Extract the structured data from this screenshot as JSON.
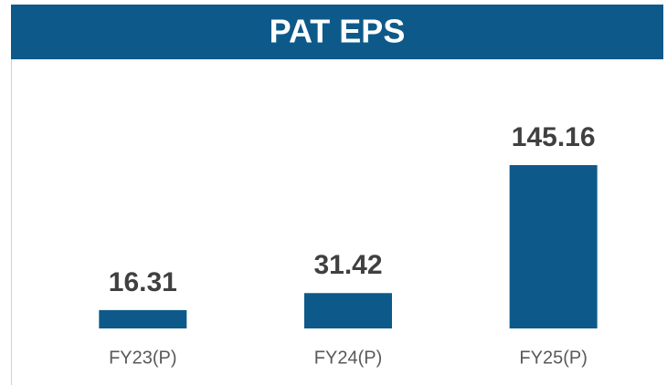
{
  "chart_data": {
    "type": "bar",
    "title": "PAT EPS",
    "categories": [
      "FY23(P)",
      "FY24(P)",
      "FY25(P)"
    ],
    "values": [
      16.31,
      31.42,
      145.16
    ],
    "color": "#0d5a8a"
  }
}
